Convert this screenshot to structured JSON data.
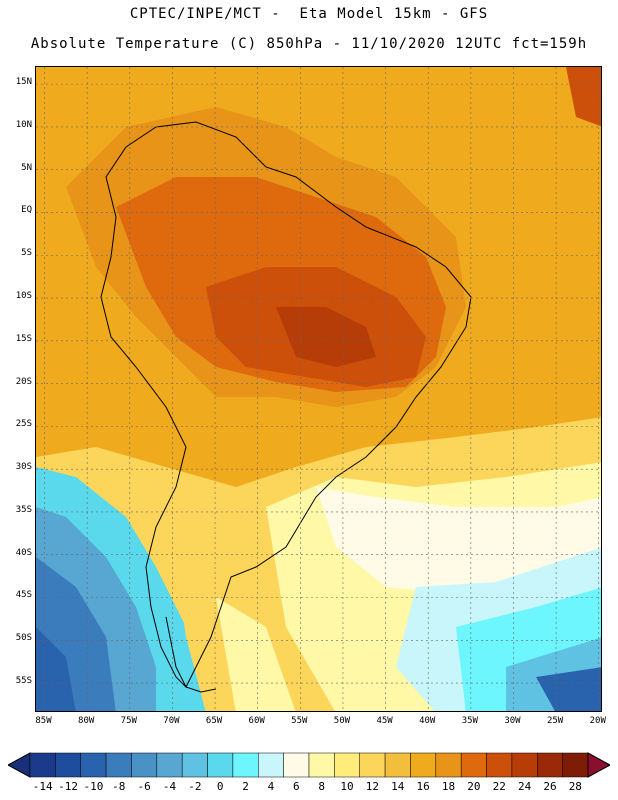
{
  "header": {
    "line1": "CPTEC/INPE/MCT -  Eta Model 15km - GFS",
    "line2": "Absolute Temperature (C) 850hPa - 11/10/2020 12UTC fct=159h"
  },
  "map": {
    "lon_range": [
      -86,
      -19.5
    ],
    "lat_range": [
      -58.5,
      17
    ],
    "lat_labels": [
      "15N",
      "10N",
      "5N",
      "EQ",
      "5S",
      "10S",
      "15S",
      "20S",
      "25S",
      "30S",
      "35S",
      "40S",
      "45S",
      "50S",
      "55S"
    ],
    "lon_labels": [
      "85W",
      "80W",
      "75W",
      "70W",
      "65W",
      "60W",
      "55W",
      "50W",
      "45W",
      "40W",
      "35W",
      "30W",
      "25W",
      "20W"
    ]
  },
  "colorbar": {
    "labels": [
      "-14",
      "-12",
      "-10",
      "-8",
      "-6",
      "-4",
      "-2",
      "0",
      "2",
      "4",
      "6",
      "8",
      "10",
      "12",
      "14",
      "16",
      "18",
      "20",
      "22",
      "24",
      "26",
      "28"
    ],
    "colors": [
      "#1c3a8c",
      "#1f4d9e",
      "#2a63ad",
      "#3a7cbc",
      "#4a91c6",
      "#58a6d2",
      "#5fc2e2",
      "#5ad8ec",
      "#6ef6ff",
      "#c8f6fb",
      "#fffbe6",
      "#fff8a6",
      "#ffec7a",
      "#fbd65a",
      "#f2bf3c",
      "#f0aa1e",
      "#e89418",
      "#df6a0e",
      "#cc4f0a",
      "#b63c08",
      "#9a2a07",
      "#7e1c08"
    ]
  }
}
